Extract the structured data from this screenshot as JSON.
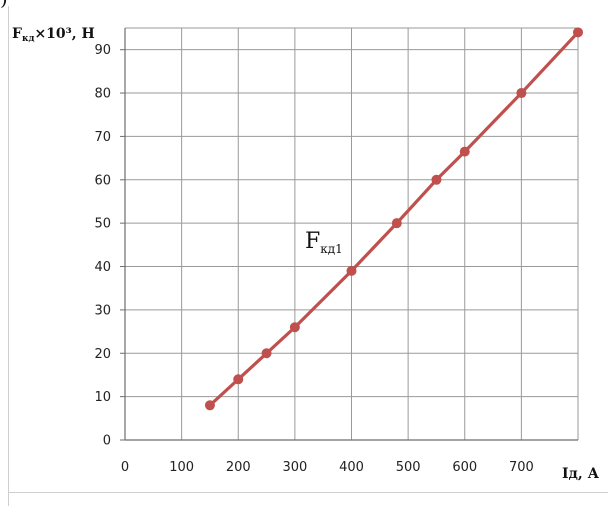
{
  "corner_mark": ")",
  "chart_data": {
    "type": "line",
    "ylabel": "F",
    "ylabel_sub": "кд",
    "ylabel_rest": "×10³, Н",
    "xlabel": "Iд, А",
    "xlim": [
      0,
      800
    ],
    "ylim": [
      0,
      95
    ],
    "xticks": [
      0,
      100,
      200,
      300,
      400,
      500,
      600,
      700
    ],
    "yticks": [
      0,
      10,
      20,
      30,
      40,
      50,
      60,
      70,
      80,
      90
    ],
    "grid": true,
    "series": [
      {
        "name": "F",
        "name_sub": "кд1",
        "color": "#c0504d",
        "x": [
          150,
          200,
          250,
          300,
          400,
          480,
          550,
          600,
          700,
          800
        ],
        "y": [
          8,
          14,
          20,
          26,
          39,
          50,
          60,
          66.5,
          80,
          94
        ]
      }
    ]
  }
}
